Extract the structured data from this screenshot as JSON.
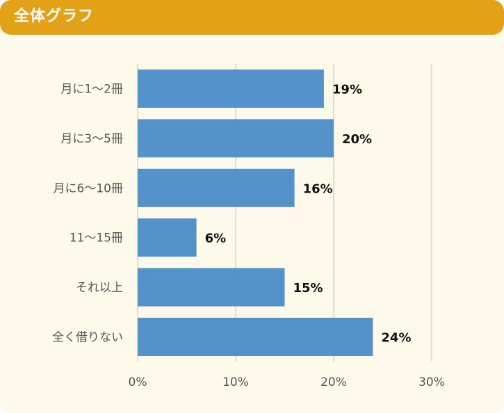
{
  "header": {
    "title": "全体グラフ"
  },
  "colors": {
    "header_bg": "#e3a118",
    "card_bg": "#fdfaec",
    "bar": "#5592c9",
    "grid": "#d9d6c8"
  },
  "chart_data": {
    "type": "bar",
    "orientation": "horizontal",
    "categories": [
      "月に1～2冊",
      "月に3～5冊",
      "月に6～10冊",
      "11～15冊",
      "それ以上",
      "全く借りない"
    ],
    "values": [
      19,
      20,
      16,
      6,
      15,
      24
    ],
    "data_labels": [
      "19%",
      "20%",
      "16%",
      "6%",
      "15%",
      "24%"
    ],
    "x_ticks": [
      0,
      10,
      20,
      30
    ],
    "x_tick_labels": [
      "0%",
      "10%",
      "20%",
      "30%"
    ],
    "xlim": [
      0,
      30
    ],
    "grid": true
  }
}
